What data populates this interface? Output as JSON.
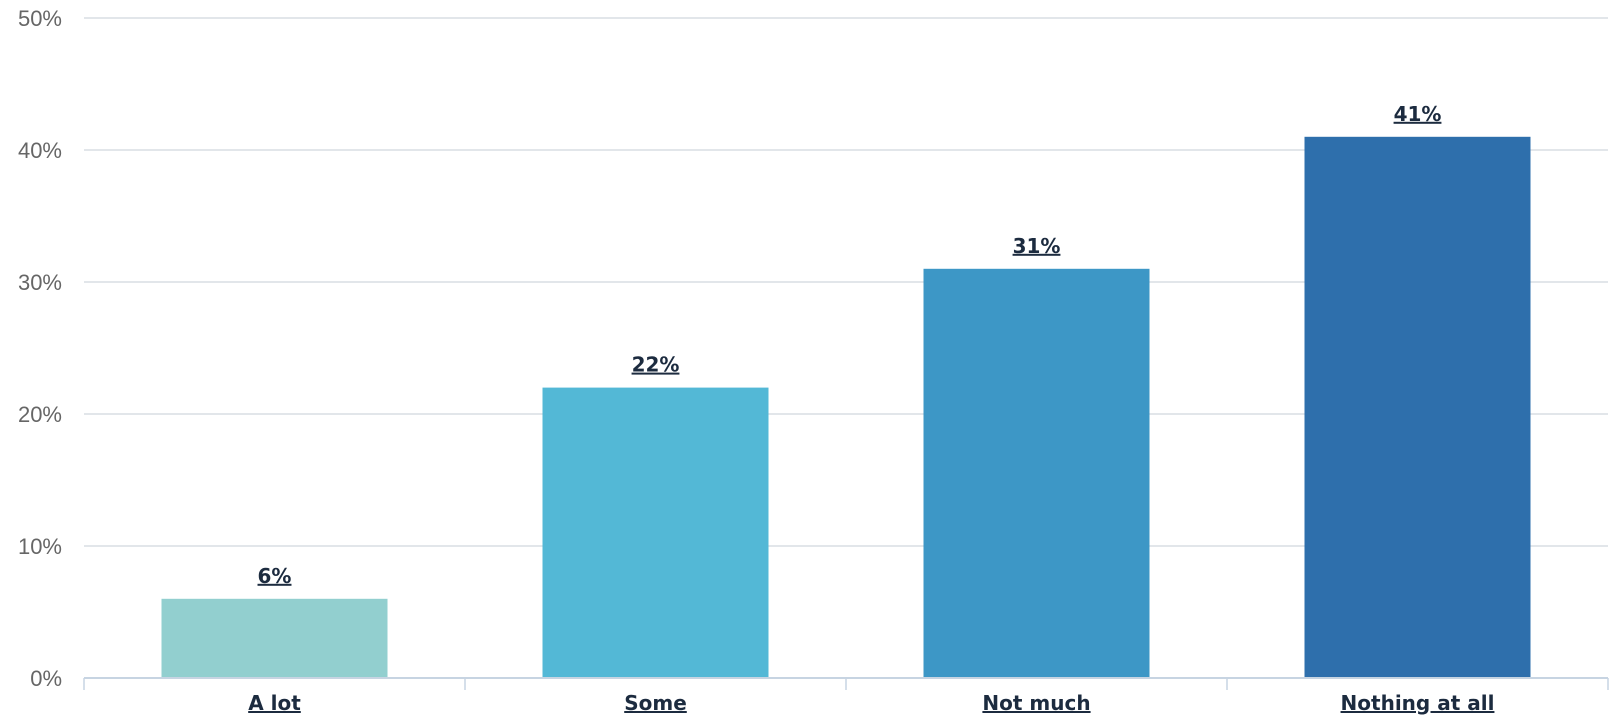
{
  "chart_data": {
    "type": "bar",
    "categories": [
      "A lot",
      "Some",
      "Not much",
      "Nothing at all"
    ],
    "values": [
      6,
      22,
      31,
      41
    ],
    "value_labels": [
      "6%",
      "22%",
      "31%",
      "41%"
    ],
    "colors": [
      "#92cfcf",
      "#53b8d6",
      "#3d97c6",
      "#2e6fac"
    ],
    "ylim": [
      0,
      50
    ],
    "yticks": [
      0,
      10,
      20,
      30,
      40,
      50
    ],
    "ytick_labels": [
      "0%",
      "10%",
      "20%",
      "30%",
      "40%",
      "50%"
    ],
    "grid": true,
    "title": "",
    "xlabel": "",
    "ylabel": ""
  }
}
